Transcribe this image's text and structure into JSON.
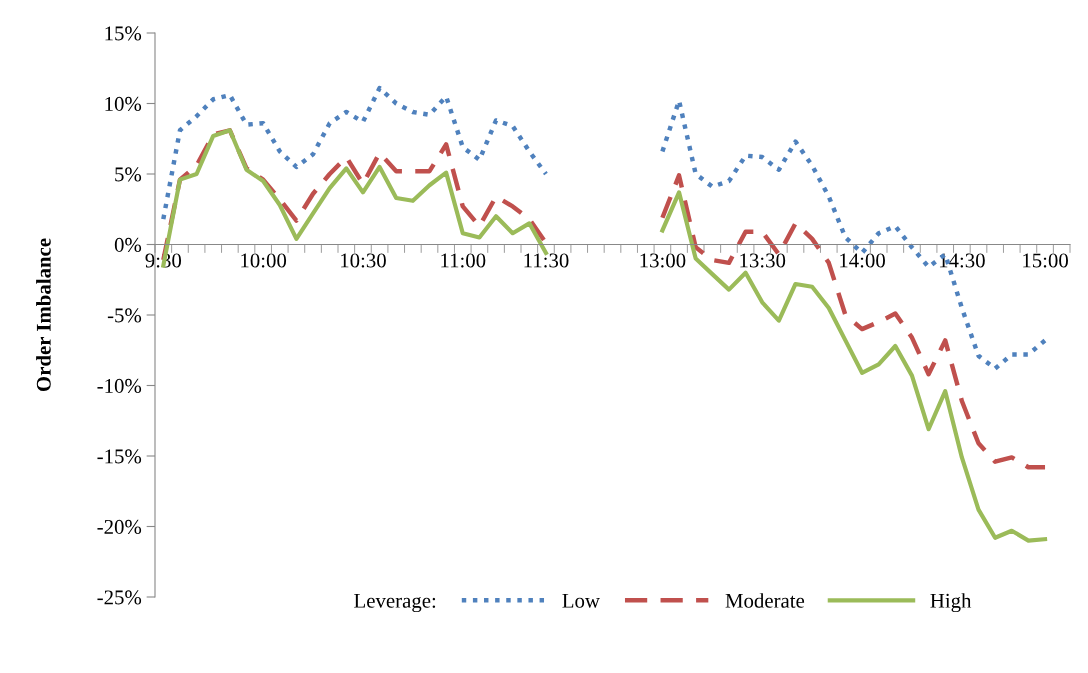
{
  "chart_data": {
    "type": "line",
    "ylabel": "Order Imbalance",
    "legend_title": "Leverage:",
    "categories": [
      "9:30",
      null,
      null,
      null,
      null,
      null,
      "10:00",
      null,
      null,
      null,
      null,
      null,
      "10:30",
      null,
      null,
      null,
      null,
      null,
      "11:00",
      null,
      null,
      null,
      null,
      "11:30",
      null,
      null,
      null,
      null,
      null,
      null,
      "13:00",
      null,
      null,
      null,
      null,
      null,
      "13:30",
      null,
      null,
      null,
      null,
      null,
      "14:00",
      null,
      null,
      null,
      null,
      null,
      "14:30",
      null,
      null,
      null,
      null,
      "15:00",
      null
    ],
    "series": [
      {
        "name": "Low",
        "color": "#4f81bd",
        "line_style": "dotted",
        "values": [
          1.8,
          8.1,
          9.1,
          10.3,
          10.6,
          8.5,
          8.6,
          6.6,
          5.5,
          6.4,
          8.6,
          9.4,
          8.7,
          11.1,
          10.0,
          9.4,
          9.2,
          10.5,
          6.9,
          6.0,
          8.8,
          8.4,
          6.6,
          5.0,
          null,
          null,
          null,
          null,
          null,
          null,
          6.6,
          10.2,
          5.0,
          4.1,
          4.5,
          6.3,
          6.2,
          5.3,
          7.3,
          5.6,
          3.4,
          0.5,
          -0.6,
          0.8,
          1.3,
          -0.2,
          -1.6,
          -0.7,
          -4.5,
          -7.9,
          -8.8,
          -7.8,
          -7.8,
          -6.8,
          null
        ]
      },
      {
        "name": "Moderate",
        "color": "#c0504d",
        "line_style": "dashed",
        "values": [
          -1.1,
          4.6,
          5.6,
          7.8,
          8.1,
          5.4,
          4.6,
          3.2,
          1.7,
          3.6,
          5.0,
          6.2,
          4.3,
          6.5,
          5.2,
          5.2,
          5.2,
          7.1,
          2.7,
          1.3,
          3.4,
          2.7,
          1.8,
          0.1,
          null,
          null,
          null,
          null,
          null,
          null,
          1.9,
          4.9,
          -0.2,
          -1.1,
          -1.3,
          0.9,
          0.9,
          -0.7,
          1.5,
          0.4,
          -1.3,
          -5.0,
          -6.0,
          -5.5,
          -4.9,
          -6.6,
          -9.2,
          -6.8,
          -11.1,
          -14.1,
          -15.4,
          -15.1,
          -15.8,
          -15.8,
          null
        ]
      },
      {
        "name": "High",
        "color": "#9bbb59",
        "line_style": "solid",
        "values": [
          -1.5,
          4.6,
          5.0,
          7.7,
          8.1,
          5.3,
          4.5,
          2.8,
          0.4,
          2.2,
          4.0,
          5.4,
          3.7,
          5.5,
          3.3,
          3.1,
          4.2,
          5.1,
          0.8,
          0.5,
          2.0,
          0.8,
          1.5,
          -0.6,
          null,
          null,
          null,
          null,
          null,
          null,
          1.0,
          3.7,
          -1.0,
          -2.1,
          -3.2,
          -2.0,
          -4.1,
          -5.4,
          -2.8,
          -3.0,
          -4.5,
          -6.8,
          -9.1,
          -8.5,
          -7.2,
          -9.3,
          -13.1,
          -10.4,
          -15.1,
          -18.8,
          -20.8,
          -20.3,
          -21.0,
          -20.9,
          null
        ]
      }
    ],
    "ylim": [
      -25,
      15
    ],
    "yticks": [
      {
        "value": -25,
        "label": "-25%"
      },
      {
        "value": -20,
        "label": "-20%"
      },
      {
        "value": -15,
        "label": "-15%"
      },
      {
        "value": -10,
        "label": "-10%"
      },
      {
        "value": -5,
        "label": "-5%"
      },
      {
        "value": 0,
        "label": "0%"
      },
      {
        "value": 5,
        "label": "5%"
      },
      {
        "value": 10,
        "label": "10%"
      },
      {
        "value": 15,
        "label": "15%"
      }
    ],
    "grid": false,
    "legend": "bottom",
    "marker": "none"
  }
}
